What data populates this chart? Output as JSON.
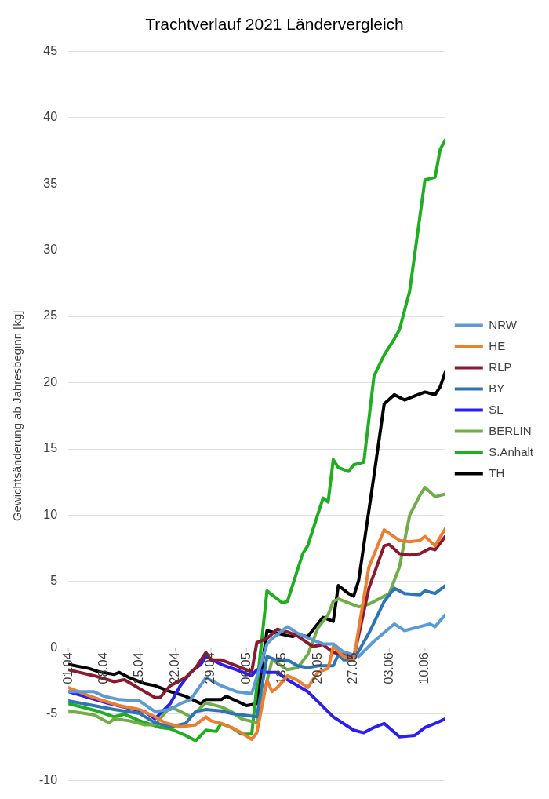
{
  "chart_data": {
    "type": "line",
    "title": "Trachtverlauf 2021 Ländervergleich",
    "ylabel": "Gewichtsänderung ab Jahresbeginn [kg]",
    "xlim": [
      "--04-01",
      "--06-14"
    ],
    "xticks": [
      {
        "value": "--04-01",
        "label": "01.04"
      },
      {
        "value": "--04-08",
        "label": "08.04"
      },
      {
        "value": "--04-15",
        "label": "15.04"
      },
      {
        "value": "--04-22",
        "label": "22.04"
      },
      {
        "value": "--04-29",
        "label": "29.04"
      },
      {
        "value": "--05-06",
        "label": "06.05"
      },
      {
        "value": "--05-13",
        "label": "13.05"
      },
      {
        "value": "--05-20",
        "label": "20.05"
      },
      {
        "value": "--05-27",
        "label": "27.05"
      },
      {
        "value": "--06-03",
        "label": "03.06"
      },
      {
        "value": "--06-10",
        "label": "10.06"
      }
    ],
    "ylim": [
      -10,
      45
    ],
    "yticks": [
      -10,
      -5,
      0,
      5,
      10,
      15,
      20,
      25,
      30,
      35,
      40,
      45
    ],
    "grid": "y",
    "legend": "right",
    "series": [
      {
        "name": "NRW",
        "color": "#5b9bd5",
        "x": [
          "--04-01",
          "--04-06",
          "--04-08",
          "--04-11",
          "--04-15",
          "--04-18",
          "--04-21",
          "--04-23",
          "--04-25",
          "--04-28",
          "--04-29",
          "--05-01",
          "--05-04",
          "--05-07",
          "--05-10",
          "--05-11",
          "--05-14",
          "--05-16",
          "--05-19",
          "--05-21",
          "--05-23",
          "--05-25",
          "--05-28",
          "--05-31",
          "--06-04",
          "--06-06",
          "--06-09",
          "--06-11",
          "--06-12",
          "--06-14"
        ],
        "values": [
          -3.3,
          -3.3,
          -3.65,
          -3.9,
          -4.0,
          -4.8,
          -4.65,
          -4.2,
          -3.9,
          -2.25,
          -2.45,
          -2.85,
          -3.3,
          -3.45,
          0.3,
          0.7,
          1.6,
          1.1,
          0.6,
          0.3,
          0.3,
          -0.3,
          -0.65,
          0.5,
          1.8,
          1.3,
          1.6,
          1.8,
          1.6,
          2.5
        ]
      },
      {
        "name": "HE",
        "color": "#ed7d31",
        "x": [
          "--04-01",
          "--04-05",
          "--04-08",
          "--04-11",
          "--04-15",
          "--04-18",
          "--04-20",
          "--04-23",
          "--04-26",
          "--04-28",
          "--04-29",
          "--05-01",
          "--05-03",
          "--05-05",
          "--05-07",
          "--05-08",
          "--05-10",
          "--05-11",
          "--05-12",
          "--05-14",
          "--05-16",
          "--05-18",
          "--05-20",
          "--05-22",
          "--05-23",
          "--05-25",
          "--05-27",
          "--05-30",
          "--06-02",
          "--06-05",
          "--06-07",
          "--06-09",
          "--06-10",
          "--06-12",
          "--06-14"
        ],
        "values": [
          -3.0,
          -3.6,
          -4.0,
          -4.35,
          -4.65,
          -5.2,
          -5.65,
          -5.95,
          -5.8,
          -5.2,
          -5.5,
          -5.7,
          -6.0,
          -6.4,
          -6.9,
          -6.4,
          -2.45,
          -3.3,
          -3.0,
          -2.1,
          -2.45,
          -3.0,
          -1.85,
          -1.55,
          0.1,
          -0.65,
          -0.9,
          6.1,
          8.9,
          8.1,
          8.0,
          8.1,
          8.4,
          7.7,
          9.0
        ]
      },
      {
        "name": "RLP",
        "color": "#8b1a2e",
        "x": [
          "--04-01",
          "--04-06",
          "--04-10",
          "--04-12",
          "--04-16",
          "--04-18",
          "--04-19",
          "--04-21",
          "--04-24",
          "--04-26",
          "--04-28",
          "--04-29",
          "--05-01",
          "--05-04",
          "--05-07",
          "--05-08",
          "--05-10",
          "--05-12",
          "--05-14",
          "--05-16",
          "--05-19",
          "--05-21",
          "--05-23",
          "--05-25",
          "--05-27",
          "--05-30",
          "--06-02",
          "--06-03",
          "--06-05",
          "--06-07",
          "--06-09",
          "--06-11",
          "--06-12",
          "--06-14"
        ],
        "values": [
          -1.65,
          -2.1,
          -2.55,
          -2.4,
          -3.3,
          -3.75,
          -3.75,
          -2.85,
          -2.25,
          -1.5,
          -0.35,
          -0.9,
          -0.9,
          -1.35,
          -1.8,
          0.4,
          0.7,
          1.4,
          1.2,
          0.9,
          0.1,
          0.25,
          -0.35,
          -0.5,
          -0.8,
          4.5,
          7.7,
          7.8,
          7.1,
          7.0,
          7.1,
          7.5,
          7.4,
          8.4
        ]
      },
      {
        "name": "BY",
        "color": "#2e75b6",
        "x": [
          "--04-01",
          "--04-06",
          "--04-10",
          "--04-15",
          "--04-18",
          "--04-21",
          "--04-24",
          "--04-26",
          "--04-28",
          "--05-01",
          "--05-03",
          "--05-05",
          "--05-08",
          "--05-10",
          "--05-12",
          "--05-14",
          "--05-16",
          "--05-18",
          "--05-20",
          "--05-23",
          "--05-24",
          "--05-25",
          "--05-27",
          "--05-30",
          "--06-02",
          "--06-04",
          "--06-06",
          "--06-09",
          "--06-10",
          "--06-12",
          "--06-14"
        ],
        "values": [
          -4.0,
          -4.35,
          -4.65,
          -4.95,
          -5.65,
          -5.95,
          -5.7,
          -4.8,
          -4.65,
          -4.75,
          -4.95,
          -5.05,
          -5.2,
          -0.65,
          -0.95,
          -0.9,
          -1.35,
          -1.5,
          -1.35,
          -1.35,
          -0.5,
          -0.9,
          -0.9,
          1.1,
          3.5,
          4.5,
          4.1,
          4.0,
          4.3,
          4.1,
          4.7
        ]
      },
      {
        "name": "SL",
        "color": "#2a1ff0",
        "x": [
          "--04-01",
          "--04-05",
          "--04-09",
          "--04-14",
          "--04-16",
          "--04-18",
          "--04-21",
          "--04-23",
          "--04-25",
          "--04-27",
          "--04-28",
          "--05-01",
          "--05-04",
          "--05-07",
          "--05-08",
          "--05-10",
          "--05-12",
          "--05-14",
          "--05-18",
          "--05-20",
          "--05-23",
          "--05-27",
          "--05-29",
          "--05-31",
          "--06-02",
          "--06-05",
          "--06-08",
          "--06-10",
          "--06-12",
          "--06-14"
        ],
        "values": [
          -3.3,
          -3.75,
          -4.2,
          -4.65,
          -4.8,
          -5.35,
          -4.2,
          -2.85,
          -1.85,
          -1.25,
          -0.65,
          -1.25,
          -1.65,
          -2.1,
          -1.65,
          -1.85,
          -1.85,
          -2.4,
          -3.3,
          -4.05,
          -5.2,
          -6.2,
          -6.4,
          -6.0,
          -5.7,
          -6.7,
          -6.6,
          -6.0,
          -5.7,
          -5.35
        ]
      },
      {
        "name": "BERLIN",
        "color": "#70ad47",
        "x": [
          "--04-01",
          "--04-06",
          "--04-09",
          "--04-10",
          "--04-13",
          "--04-16",
          "--04-18",
          "--04-21",
          "--04-23",
          "--04-25",
          "--04-28",
          "--05-01",
          "--05-03",
          "--05-05",
          "--05-08",
          "--05-11",
          "--05-14",
          "--05-16",
          "--05-18",
          "--05-20",
          "--05-22",
          "--05-23",
          "--05-24",
          "--05-26",
          "--05-28",
          "--05-30",
          "--06-01",
          "--06-03",
          "--06-05",
          "--06-07",
          "--06-09",
          "--06-10",
          "--06-12",
          "--06-14"
        ],
        "values": [
          -4.75,
          -5.05,
          -5.65,
          -5.35,
          -5.5,
          -5.8,
          -5.8,
          -4.45,
          -4.8,
          -5.2,
          -4.15,
          -4.45,
          -4.8,
          -5.35,
          -5.65,
          -0.9,
          -1.65,
          -1.5,
          -0.5,
          1.5,
          2.5,
          3.5,
          3.7,
          3.4,
          3.1,
          3.3,
          3.7,
          4.1,
          6.1,
          10.0,
          11.5,
          12.1,
          11.4,
          11.6
        ]
      },
      {
        "name": "S.Anhalt",
        "color": "#1fae1f",
        "x": [
          "--04-01",
          "--04-07",
          "--04-10",
          "--04-12",
          "--04-15",
          "--04-19",
          "--04-21",
          "--04-24",
          "--04-26",
          "--04-28",
          "--04-30",
          "--05-01",
          "--05-03",
          "--05-05",
          "--05-07",
          "--05-10",
          "--05-13",
          "--05-14",
          "--05-15",
          "--05-17",
          "--05-18",
          "--05-21",
          "--05-22",
          "--05-23",
          "--05-24",
          "--05-26",
          "--05-27",
          "--05-29",
          "--05-31",
          "--06-02",
          "--06-04",
          "--06-05",
          "--06-07",
          "--06-10",
          "--06-12",
          "--06-13",
          "--06-14"
        ],
        "values": [
          -4.2,
          -4.8,
          -5.2,
          -5.0,
          -5.5,
          -6.0,
          -6.1,
          -6.6,
          -7.0,
          -6.2,
          -6.3,
          -5.7,
          -6.0,
          -6.5,
          -6.5,
          4.3,
          3.4,
          3.5,
          4.7,
          7.1,
          7.7,
          11.3,
          11.0,
          14.2,
          13.6,
          13.3,
          13.8,
          14.0,
          20.5,
          22.1,
          23.3,
          24.0,
          26.9,
          35.3,
          35.5,
          37.6,
          38.3
        ]
      },
      {
        "name": "TH",
        "color": "#000000",
        "x": [
          "--04-01",
          "--04-05",
          "--04-07",
          "--04-10",
          "--04-11",
          "--04-13",
          "--04-16",
          "--04-18",
          "--04-21",
          "--04-24",
          "--04-27",
          "--04-28",
          "--05-01",
          "--05-02",
          "--05-04",
          "--05-06",
          "--05-08",
          "--05-10",
          "--05-12",
          "--05-15",
          "--05-16",
          "--05-18",
          "--05-21",
          "--05-23",
          "--05-24",
          "--05-26",
          "--05-27",
          "--05-28",
          "--05-31",
          "--06-02",
          "--06-04",
          "--06-06",
          "--06-08",
          "--06-10",
          "--06-12",
          "--06-13",
          "--06-14"
        ],
        "values": [
          -1.25,
          -1.55,
          -1.8,
          -2.0,
          -1.85,
          -2.25,
          -2.7,
          -2.85,
          -3.3,
          -3.65,
          -4.2,
          -3.9,
          -3.9,
          -3.65,
          -4.0,
          -4.35,
          -4.2,
          1.3,
          1.1,
          0.85,
          1.0,
          0.85,
          2.3,
          2.0,
          4.7,
          4.1,
          3.9,
          5.1,
          13.0,
          18.4,
          19.1,
          18.7,
          19.0,
          19.3,
          19.1,
          19.7,
          20.8
        ]
      }
    ]
  }
}
